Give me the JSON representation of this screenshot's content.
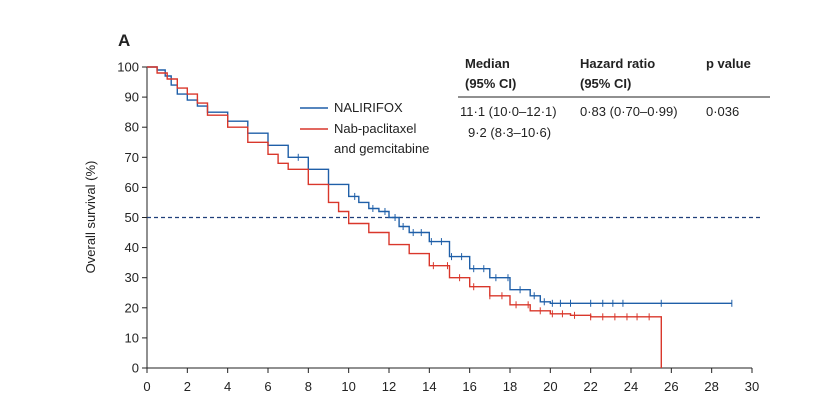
{
  "chart_data": {
    "type": "line",
    "panel_label": "A",
    "xlabel": "",
    "ylabel": "Overall survival (%)",
    "xlim": [
      0,
      30
    ],
    "ylim": [
      0,
      100
    ],
    "x_ticks": [
      0,
      2,
      4,
      6,
      8,
      10,
      12,
      14,
      16,
      18,
      20,
      22,
      24,
      26,
      28,
      30
    ],
    "y_ticks": [
      0,
      10,
      20,
      30,
      40,
      50,
      60,
      70,
      80,
      90,
      100
    ],
    "reference_line": {
      "y": 50,
      "style": "dashed"
    },
    "table": {
      "headers": {
        "median": [
          "Median",
          "(95% CI)"
        ],
        "hazard": [
          "Hazard ratio",
          "(95% CI)"
        ],
        "pvalue": "p value"
      },
      "rows": [
        {
          "median": "11·1 (10·0–12·1)",
          "hazard": "0·83 (0·70–0·99)",
          "pvalue": "0·036"
        },
        {
          "median": "9·2 (8·3–10·6)",
          "hazard": "",
          "pvalue": ""
        }
      ]
    },
    "series": [
      {
        "name": "NALIRIFOX",
        "color": "#1f5fa8",
        "points": [
          [
            0,
            100
          ],
          [
            0.5,
            99
          ],
          [
            0.9,
            97
          ],
          [
            1.2,
            94
          ],
          [
            1.5,
            91
          ],
          [
            2,
            89
          ],
          [
            2.5,
            87
          ],
          [
            3,
            85
          ],
          [
            4,
            82
          ],
          [
            5,
            78
          ],
          [
            6,
            74
          ],
          [
            7,
            70
          ],
          [
            8,
            66
          ],
          [
            9,
            61
          ],
          [
            10,
            57
          ],
          [
            10.5,
            55
          ],
          [
            11,
            53
          ],
          [
            11.5,
            52
          ],
          [
            12,
            50
          ],
          [
            12.5,
            47
          ],
          [
            13,
            45
          ],
          [
            14,
            42
          ],
          [
            15,
            37
          ],
          [
            16,
            33
          ],
          [
            17,
            30
          ],
          [
            18,
            26
          ],
          [
            19,
            24
          ],
          [
            19.5,
            22
          ],
          [
            20,
            21.5
          ],
          [
            23,
            21.5
          ],
          [
            25,
            21.5
          ],
          [
            29,
            21.5
          ]
        ],
        "censor_x": [
          7.5,
          10.3,
          11.2,
          11.8,
          12.3,
          12.7,
          13.2,
          13.6,
          14.1,
          14.6,
          15.1,
          15.6,
          16.2,
          16.7,
          17.3,
          17.9,
          18.5,
          19.2,
          19.7,
          20.1,
          20.5,
          21.0,
          22.0,
          22.6,
          23.1,
          23.6,
          25.5,
          29.0
        ]
      },
      {
        "name": "Nab-paclitaxel and gemcitabine",
        "color": "#d9372b",
        "points": [
          [
            0,
            100
          ],
          [
            0.5,
            98
          ],
          [
            1,
            96
          ],
          [
            1.5,
            93
          ],
          [
            2,
            91
          ],
          [
            2.5,
            88
          ],
          [
            3,
            84
          ],
          [
            4,
            80
          ],
          [
            5,
            75
          ],
          [
            6,
            71
          ],
          [
            6.5,
            68
          ],
          [
            7,
            66
          ],
          [
            8,
            61
          ],
          [
            9,
            55
          ],
          [
            9.5,
            52
          ],
          [
            10,
            48
          ],
          [
            11,
            45
          ],
          [
            12,
            41
          ],
          [
            13,
            38
          ],
          [
            14,
            34
          ],
          [
            15,
            30
          ],
          [
            16,
            27
          ],
          [
            17,
            24
          ],
          [
            18,
            21
          ],
          [
            19,
            19
          ],
          [
            20,
            18
          ],
          [
            21,
            17.5
          ],
          [
            22,
            17
          ],
          [
            25.5,
            17
          ],
          [
            25.5,
            0
          ]
        ],
        "censor_x": [
          14.2,
          14.9,
          15.5,
          16.2,
          17.0,
          17.6,
          18.3,
          18.9,
          19.5,
          20.1,
          20.6,
          21.2,
          22.0,
          22.6,
          23.2,
          23.8,
          24.3,
          24.9
        ]
      }
    ],
    "legend_lines": [
      [
        "NALIRIFOX"
      ],
      [
        "Nab-paclitaxel",
        "and gemcitabine"
      ]
    ]
  }
}
